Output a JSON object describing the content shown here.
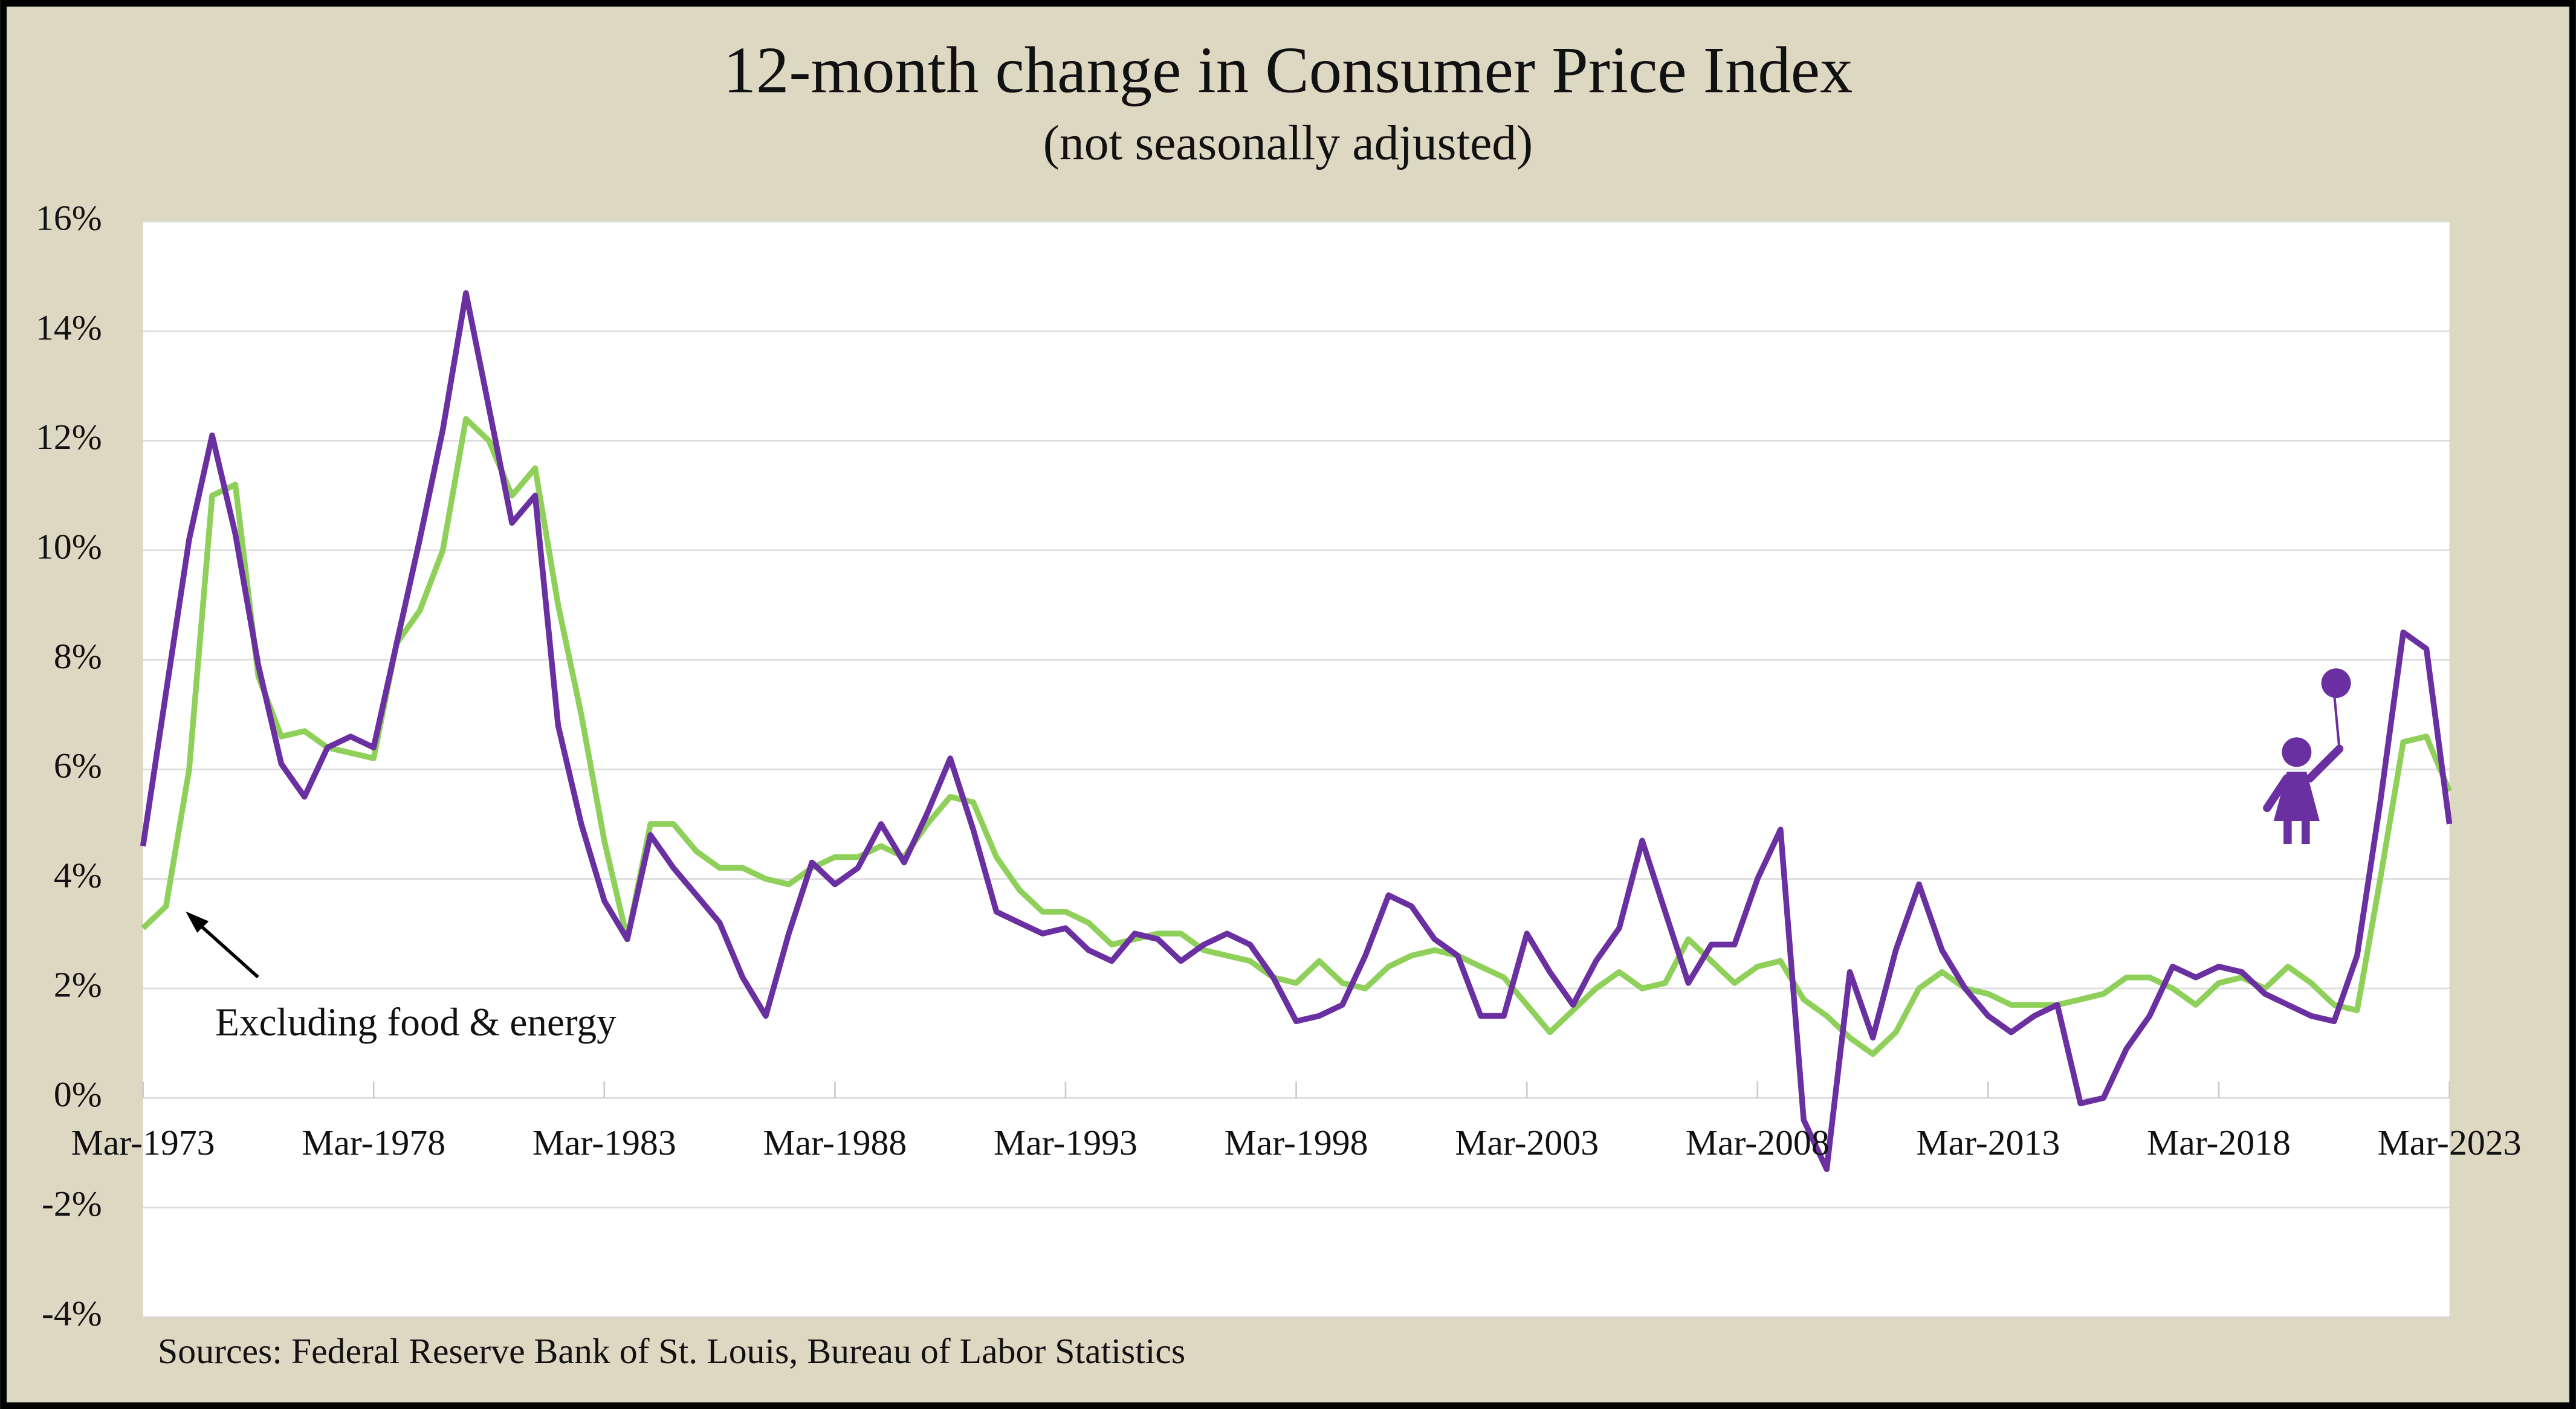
{
  "chart_data": {
    "type": "line",
    "title": "12-month change in Consumer Price Index",
    "subtitle": "(not seasonally adjusted)",
    "source": "Sources: Federal Reserve Bank of St. Louis, Bureau of Labor Statistics",
    "annotation": "Excluding food & energy",
    "x": [
      "Mar-1973",
      "Sep-1973",
      "Mar-1974",
      "Sep-1974",
      "Mar-1975",
      "Sep-1975",
      "Mar-1976",
      "Sep-1976",
      "Mar-1977",
      "Sep-1977",
      "Mar-1978",
      "Sep-1978",
      "Mar-1979",
      "Sep-1979",
      "Mar-1980",
      "Sep-1980",
      "Mar-1981",
      "Sep-1981",
      "Mar-1982",
      "Sep-1982",
      "Mar-1983",
      "Sep-1983",
      "Mar-1984",
      "Sep-1984",
      "Mar-1985",
      "Sep-1985",
      "Mar-1986",
      "Sep-1986",
      "Mar-1987",
      "Sep-1987",
      "Mar-1988",
      "Sep-1988",
      "Mar-1989",
      "Sep-1989",
      "Mar-1990",
      "Sep-1990",
      "Mar-1991",
      "Sep-1991",
      "Mar-1992",
      "Sep-1992",
      "Mar-1993",
      "Sep-1993",
      "Mar-1994",
      "Sep-1994",
      "Mar-1995",
      "Sep-1995",
      "Mar-1996",
      "Sep-1996",
      "Mar-1997",
      "Sep-1997",
      "Mar-1998",
      "Sep-1998",
      "Mar-1999",
      "Sep-1999",
      "Mar-2000",
      "Sep-2000",
      "Mar-2001",
      "Sep-2001",
      "Mar-2002",
      "Sep-2002",
      "Mar-2003",
      "Sep-2003",
      "Mar-2004",
      "Sep-2004",
      "Mar-2005",
      "Sep-2005",
      "Mar-2006",
      "Sep-2006",
      "Mar-2007",
      "Sep-2007",
      "Mar-2008",
      "Sep-2008",
      "Mar-2009",
      "Sep-2009",
      "Mar-2010",
      "Sep-2010",
      "Mar-2011",
      "Sep-2011",
      "Mar-2012",
      "Sep-2012",
      "Mar-2013",
      "Sep-2013",
      "Mar-2014",
      "Sep-2014",
      "Mar-2015",
      "Sep-2015",
      "Mar-2016",
      "Sep-2016",
      "Mar-2017",
      "Sep-2017",
      "Mar-2018",
      "Sep-2018",
      "Mar-2019",
      "Sep-2019",
      "Mar-2020",
      "Sep-2020",
      "Mar-2021",
      "Sep-2021",
      "Mar-2022",
      "Sep-2022",
      "Mar-2023"
    ],
    "series": [
      {
        "color": "#6a2fa0",
        "values": [
          4.6,
          7.4,
          10.2,
          12.1,
          10.3,
          7.9,
          6.1,
          5.5,
          6.4,
          6.6,
          6.4,
          8.3,
          10.2,
          12.2,
          14.7,
          12.6,
          10.5,
          11.0,
          6.8,
          5.0,
          3.6,
          2.9,
          4.8,
          4.2,
          3.7,
          3.2,
          2.2,
          1.5,
          3.0,
          4.3,
          3.9,
          4.2,
          5.0,
          4.3,
          5.2,
          6.2,
          4.9,
          3.4,
          3.2,
          3.0,
          3.1,
          2.7,
          2.5,
          3.0,
          2.9,
          2.5,
          2.8,
          3.0,
          2.8,
          2.2,
          1.4,
          1.5,
          1.7,
          2.6,
          3.7,
          3.5,
          2.9,
          2.6,
          1.5,
          1.5,
          3.0,
          2.3,
          1.7,
          2.5,
          3.1,
          4.7,
          3.4,
          2.1,
          2.8,
          2.8,
          4.0,
          4.9,
          -0.4,
          -1.3,
          2.3,
          1.1,
          2.7,
          3.9,
          2.7,
          2.0,
          1.5,
          1.2,
          1.5,
          1.7,
          -0.1,
          0.0,
          0.9,
          1.5,
          2.4,
          2.2,
          2.4,
          2.3,
          1.9,
          1.7,
          1.5,
          1.4,
          2.6,
          5.4,
          8.5,
          8.2,
          5.0
        ]
      },
      {
        "color": "#8fd05a",
        "values": [
          3.1,
          3.5,
          6.0,
          11.0,
          11.2,
          7.7,
          6.6,
          6.7,
          6.4,
          6.3,
          6.2,
          8.3,
          8.9,
          10.0,
          12.4,
          12.0,
          11.0,
          11.5,
          9.0,
          7.0,
          4.7,
          2.9,
          5.0,
          5.0,
          4.5,
          4.2,
          4.2,
          4.0,
          3.9,
          4.2,
          4.4,
          4.4,
          4.6,
          4.4,
          5.0,
          5.5,
          5.4,
          4.4,
          3.8,
          3.4,
          3.4,
          3.2,
          2.8,
          2.9,
          3.0,
          3.0,
          2.7,
          2.6,
          2.5,
          2.2,
          2.1,
          2.5,
          2.1,
          2.0,
          2.4,
          2.6,
          2.7,
          2.6,
          2.4,
          2.2,
          1.7,
          1.2,
          1.6,
          2.0,
          2.3,
          2.0,
          2.1,
          2.9,
          2.5,
          2.1,
          2.4,
          2.5,
          1.8,
          1.5,
          1.1,
          0.8,
          1.2,
          2.0,
          2.3,
          2.0,
          1.9,
          1.7,
          1.7,
          1.7,
          1.8,
          1.9,
          2.2,
          2.2,
          2.0,
          1.7,
          2.1,
          2.2,
          2.0,
          2.4,
          2.1,
          1.7,
          1.6,
          4.0,
          6.5,
          6.6,
          5.6
        ]
      }
    ],
    "xticks": [
      "Mar-1973",
      "Mar-1978",
      "Mar-1983",
      "Mar-1988",
      "Mar-1993",
      "Mar-1998",
      "Mar-2003",
      "Mar-2008",
      "Mar-2013",
      "Mar-2018",
      "Mar-2023"
    ],
    "ylim": [
      -4,
      16
    ],
    "yticks": [
      {
        "value": -4,
        "label": "-4%"
      },
      {
        "value": -2,
        "label": "-2%"
      },
      {
        "value": 0,
        "label": "0%"
      },
      {
        "value": 2,
        "label": "2%"
      },
      {
        "value": 4,
        "label": "4%"
      },
      {
        "value": 6,
        "label": "6%"
      },
      {
        "value": 8,
        "label": "8%"
      },
      {
        "value": 10,
        "label": "10%"
      },
      {
        "value": 12,
        "label": "12%"
      },
      {
        "value": 14,
        "label": "14%"
      },
      {
        "value": 16,
        "label": "16%"
      }
    ],
    "grid": true
  }
}
